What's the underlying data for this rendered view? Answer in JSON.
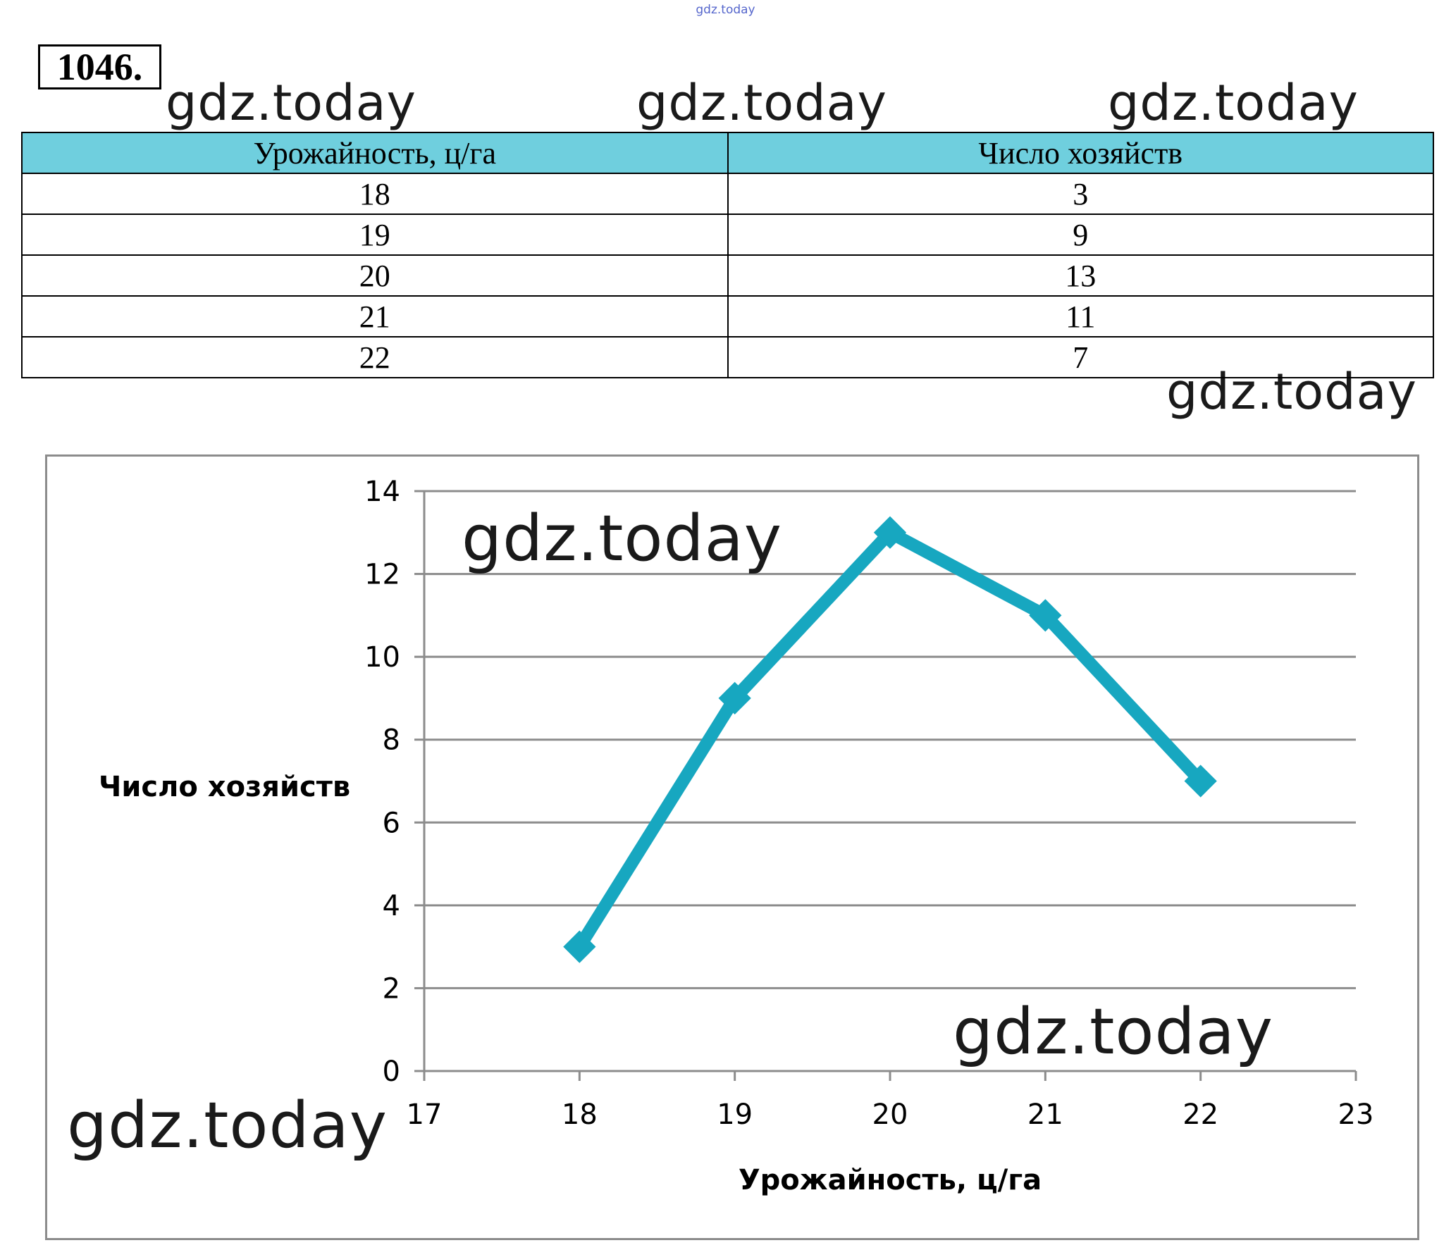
{
  "top_watermark": "gdz.today",
  "problem_number": "1046.",
  "watermark": "gdz.today",
  "table": {
    "headers": [
      "Урожайность, ц/га",
      "Число хозяйств"
    ],
    "rows": [
      [
        "18",
        "3"
      ],
      [
        "19",
        "9"
      ],
      [
        "20",
        "13"
      ],
      [
        "21",
        "11"
      ],
      [
        "22",
        "7"
      ]
    ]
  },
  "chart_data": {
    "type": "line",
    "title": "",
    "xlabel": "Урожайность, ц/га",
    "ylabel": "Число хозяйств",
    "xlim": [
      17,
      23
    ],
    "ylim": [
      0,
      14
    ],
    "x_ticks": [
      "17",
      "18",
      "19",
      "20",
      "21",
      "22",
      "23"
    ],
    "y_ticks": [
      "0",
      "2",
      "4",
      "6",
      "8",
      "10",
      "12",
      "14"
    ],
    "grid": true,
    "legend": "none",
    "series": [
      {
        "x": [
          18,
          19,
          20,
          21,
          22
        ],
        "values": [
          3,
          9,
          13,
          11,
          7
        ],
        "color": "#17a7c0"
      }
    ],
    "gridline_color": "#8c8c8c"
  }
}
